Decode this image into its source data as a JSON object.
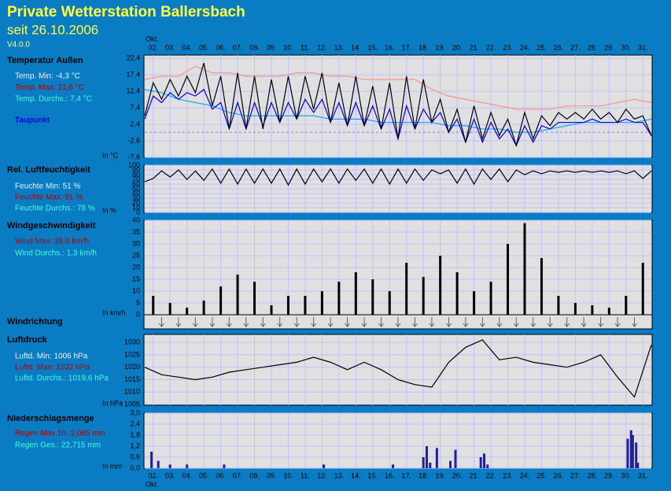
{
  "header": {
    "title": "Private Wetterstation Ballersbach",
    "subtitle": "seit 26.10.2006",
    "version": "V4.0.0"
  },
  "x_axis": {
    "month": "Okt.",
    "xlim": [
      2,
      32
    ],
    "xticks": [
      {
        "value": 2,
        "label": "02."
      },
      {
        "value": 3,
        "label": "03."
      },
      {
        "value": 4,
        "label": "04."
      },
      {
        "value": 5,
        "label": "05."
      },
      {
        "value": 6,
        "label": "06."
      },
      {
        "value": 7,
        "label": "07."
      },
      {
        "value": 8,
        "label": "08."
      },
      {
        "value": 9,
        "label": "09."
      },
      {
        "value": 10,
        "label": "10."
      },
      {
        "value": 11,
        "label": "11."
      },
      {
        "value": 12,
        "label": "12."
      },
      {
        "value": 13,
        "label": "13."
      },
      {
        "value": 14,
        "label": "14."
      },
      {
        "value": 15,
        "label": "15."
      },
      {
        "value": 16,
        "label": "16."
      },
      {
        "value": 17,
        "label": "17."
      },
      {
        "value": 18,
        "label": "18."
      },
      {
        "value": 19,
        "label": "19."
      },
      {
        "value": 20,
        "label": "20."
      },
      {
        "value": 21,
        "label": "21."
      },
      {
        "value": 22,
        "label": "22."
      },
      {
        "value": 23,
        "label": "23."
      },
      {
        "value": 24,
        "label": "24."
      },
      {
        "value": 25,
        "label": "25."
      },
      {
        "value": 26,
        "label": "26."
      },
      {
        "value": 27,
        "label": "27."
      },
      {
        "value": 28,
        "label": "28."
      },
      {
        "value": 29,
        "label": "29."
      },
      {
        "value": 30,
        "label": "30."
      },
      {
        "value": 31,
        "label": "31."
      }
    ]
  },
  "chart_data": [
    {
      "type": "line",
      "title": "Temperatur Außen",
      "unit": "In °C",
      "zero_line": true,
      "stats": [
        {
          "text": "Temp. Min: -4,3 °C",
          "color": "#e8f4ff"
        },
        {
          "text": "Temp. Max: 21,6 °C",
          "color": "#b00000"
        },
        {
          "text": "Temp. Durchs.: 7,4 °C",
          "color": "#40ffe0"
        }
      ],
      "ylim": [
        -7.6,
        23.4
      ],
      "yticks": [
        {
          "value": 22.4,
          "label": "22,4"
        },
        {
          "value": 17.4,
          "label": "17,4"
        },
        {
          "value": 12.4,
          "label": "12,4"
        },
        {
          "value": 7.4,
          "label": "7,4"
        },
        {
          "value": 2.4,
          "label": "2,4"
        },
        {
          "value": -2.6,
          "label": "-2,6"
        },
        {
          "value": -7.6,
          "label": "-7,6"
        }
      ],
      "x": [
        2,
        2.5,
        3,
        3.5,
        4,
        4.5,
        5,
        5.5,
        6,
        6.5,
        7,
        7.5,
        8,
        8.5,
        9,
        9.5,
        10,
        10.5,
        11,
        11.5,
        12,
        12.5,
        13,
        13.5,
        14,
        14.5,
        15,
        15.5,
        16,
        16.5,
        17,
        17.5,
        18,
        18.5,
        19,
        19.5,
        20,
        20.5,
        21,
        21.5,
        22,
        22.5,
        23,
        23.5,
        24,
        24.5,
        25,
        25.5,
        26,
        26.5,
        27,
        27.5,
        28,
        28.5,
        29,
        29.5,
        30,
        30.5,
        31,
        31.5,
        32
      ],
      "series": [
        {
          "color": "#ff9090",
          "x": [
            2,
            3,
            4,
            5,
            6,
            7,
            8,
            9,
            10,
            11,
            12,
            13,
            14,
            15,
            16,
            17,
            18,
            19,
            20,
            21,
            22,
            23,
            24,
            25,
            26,
            27,
            28,
            29,
            30,
            31,
            32
          ],
          "values": [
            16,
            17,
            17,
            20,
            18,
            18,
            17,
            17,
            17,
            18,
            18,
            17,
            17,
            16,
            16,
            16,
            16,
            13,
            11,
            10,
            9,
            8,
            7,
            7,
            7,
            8,
            8,
            8,
            9,
            10,
            9
          ]
        },
        {
          "color": "#10a8f0",
          "x": [
            2,
            3,
            4,
            5,
            6,
            7,
            8,
            9,
            10,
            11,
            12,
            13,
            14,
            15,
            16,
            17,
            18,
            19,
            20,
            21,
            22,
            23,
            24,
            25,
            26,
            27,
            28,
            29,
            30,
            31,
            32
          ],
          "values": [
            13,
            12,
            10,
            9,
            8,
            6,
            5,
            5,
            5,
            5,
            5,
            4,
            4,
            4,
            3,
            3,
            3,
            3,
            2,
            2,
            1,
            1,
            0,
            0,
            1,
            2,
            3,
            3,
            3,
            3,
            4
          ]
        },
        {
          "name": "Taupunkt",
          "color": "#0000e0",
          "values": [
            4,
            11,
            9,
            12,
            10,
            12,
            11,
            13,
            7,
            9,
            1,
            9,
            1,
            9,
            2,
            9,
            3,
            9,
            4,
            10,
            6,
            10,
            3,
            9,
            2,
            9,
            2,
            8,
            1,
            7,
            -2,
            8,
            1,
            7,
            3,
            6,
            0,
            4,
            -3,
            4,
            -3,
            3,
            -2,
            1,
            -4,
            2,
            -3,
            2,
            1,
            3,
            3,
            3,
            3,
            4,
            3,
            3,
            3,
            4,
            3,
            3,
            -1
          ]
        },
        {
          "color": "#000000",
          "values": [
            5,
            15,
            10,
            16,
            11,
            17,
            12,
            21,
            8,
            17,
            1,
            18,
            1,
            17,
            1,
            16,
            3,
            17,
            4,
            17,
            7,
            18,
            3,
            15,
            2,
            17,
            2,
            14,
            1,
            15,
            -2,
            17,
            1,
            16,
            3,
            10,
            0,
            7,
            -3,
            8,
            -2,
            6,
            -1,
            4,
            -4,
            6,
            -2,
            5,
            2,
            6,
            4,
            6,
            4,
            7,
            4,
            6,
            3,
            7,
            4,
            5,
            -1
          ]
        }
      ]
    },
    {
      "type": "line",
      "title": "Rel. Luftfeuchtigkeit",
      "unit": "In %",
      "stats": [
        {
          "text": "Feuchte Min: 51 %",
          "color": "#e8f4ff"
        },
        {
          "text": "Feuchte Max: 91 %",
          "color": "#b00000"
        },
        {
          "text": "Feuchte Durchs.: 78 %",
          "color": "#40ffe0"
        }
      ],
      "ylim": [
        0,
        100
      ],
      "yticks": [
        100,
        90,
        80,
        70,
        60,
        50,
        40,
        30,
        20,
        10,
        0
      ],
      "x": [
        2,
        2.5,
        3,
        3.5,
        4,
        4.5,
        5,
        5.5,
        6,
        6.5,
        7,
        7.5,
        8,
        8.5,
        9,
        9.5,
        10,
        10.5,
        11,
        11.5,
        12,
        12.5,
        13,
        13.5,
        14,
        14.5,
        15,
        15.5,
        16,
        16.5,
        17,
        17.5,
        18,
        18.5,
        19,
        19.5,
        20,
        20.5,
        21,
        21.5,
        22,
        22.5,
        23,
        23.5,
        24,
        24.5,
        25,
        25.5,
        26,
        26.5,
        27,
        27.5,
        28,
        28.5,
        29,
        29.5,
        30,
        30.5,
        31,
        31.5,
        32
      ],
      "series": [
        {
          "color": "#000000",
          "values": [
            65,
            72,
            88,
            75,
            90,
            70,
            88,
            68,
            92,
            62,
            92,
            60,
            92,
            62,
            92,
            62,
            92,
            58,
            92,
            60,
            92,
            65,
            92,
            62,
            92,
            68,
            92,
            62,
            92,
            60,
            92,
            62,
            92,
            68,
            90,
            82,
            90,
            62,
            92,
            60,
            92,
            70,
            92,
            65,
            90,
            80,
            88,
            82,
            88,
            85,
            88,
            85,
            88,
            85,
            88,
            85,
            88,
            82,
            88,
            72,
            88
          ]
        }
      ]
    },
    {
      "type": "bar",
      "title": "Windgeschwindigkeit",
      "unit": "In km/h",
      "stats": [
        {
          "text": "Wind Max: 38,8 km/h",
          "color": "#b00000"
        },
        {
          "text": "Wind Durchs.: 1,3 km/h",
          "color": "#40ffe0"
        }
      ],
      "ylim": [
        0,
        40
      ],
      "yticks": [
        40,
        35,
        30,
        25,
        20,
        15,
        10,
        5,
        0
      ],
      "x": [
        2,
        2.5,
        3,
        3.5,
        4,
        4.5,
        5,
        5.5,
        6,
        6.5,
        7,
        7.5,
        8,
        8.5,
        9,
        9.5,
        10,
        10.5,
        11,
        11.5,
        12,
        12.5,
        13,
        13.5,
        14,
        14.5,
        15,
        15.5,
        16,
        16.5,
        17,
        17.5,
        18,
        18.5,
        19,
        19.5,
        20,
        20.5,
        21,
        21.5,
        22,
        22.5,
        23,
        23.5,
        24,
        24.5,
        25,
        25.5,
        26,
        26.5,
        27,
        27.5,
        28,
        28.5,
        29,
        29.5,
        30,
        30.5,
        31,
        31.5,
        32
      ],
      "series": [
        {
          "color": "#000000",
          "values": [
            0,
            8,
            0,
            5,
            0,
            3,
            0,
            6,
            0,
            12,
            0,
            17,
            0,
            14,
            0,
            4,
            0,
            8,
            0,
            8,
            0,
            10,
            0,
            14,
            0,
            18,
            0,
            15,
            0,
            10,
            0,
            22,
            0,
            16,
            0,
            25,
            0,
            18,
            0,
            10,
            0,
            14,
            0,
            30,
            0,
            38.8,
            0,
            24,
            0,
            8,
            0,
            5,
            0,
            4,
            0,
            3,
            0,
            8,
            0,
            22,
            0
          ]
        }
      ]
    },
    {
      "type": "arrows",
      "title": "Windrichtung",
      "x": [
        3,
        4,
        5,
        6,
        7,
        8,
        9,
        10,
        11,
        12,
        13,
        14,
        15,
        16,
        17,
        18,
        19,
        20,
        21,
        22,
        23,
        24,
        25,
        26,
        27,
        28,
        29,
        30,
        31
      ],
      "series": [
        {
          "color": "#606060",
          "values": [
            0,
            0,
            0,
            0,
            0,
            0,
            0,
            0,
            0,
            0,
            0,
            0,
            0,
            0,
            0,
            0,
            0,
            0,
            0,
            0,
            0,
            0,
            0,
            0,
            0,
            0,
            0,
            0,
            0
          ]
        }
      ]
    },
    {
      "type": "line",
      "title": "Luftdruck",
      "unit": "In hPa",
      "stats": [
        {
          "text": "Luftd. Min: 1006 hPa",
          "color": "#e8f4ff"
        },
        {
          "text": "Luftd. Max: 1032 hPa",
          "color": "#b00000"
        },
        {
          "text": "Luftd. Durchs.: 1019,6 hPa",
          "color": "#40ffe0"
        }
      ],
      "ylim": [
        1004.7,
        1033.2
      ],
      "yticks": [
        1030,
        1025,
        1020,
        1015,
        1010,
        1005
      ],
      "x": [
        2,
        3,
        4,
        5,
        6,
        7,
        8,
        9,
        10,
        11,
        12,
        13,
        14,
        15,
        16,
        17,
        18,
        19,
        20,
        21,
        22,
        23,
        24,
        25,
        26,
        27,
        28,
        29,
        30,
        31,
        32
      ],
      "series": [
        {
          "color": "#000000",
          "values": [
            1020,
            1017,
            1016,
            1015,
            1016,
            1018,
            1019,
            1020,
            1021,
            1022,
            1024,
            1022,
            1019,
            1022,
            1019,
            1015,
            1013,
            1012,
            1022,
            1028,
            1031,
            1023,
            1024,
            1022,
            1021,
            1020,
            1022,
            1025,
            1016,
            1008,
            1029
          ]
        }
      ]
    },
    {
      "type": "bar",
      "title": "Niederschlagsmenge",
      "unit": "In mm",
      "stats": [
        {
          "text": "Regen Max 1h: 2,065 mm",
          "color": "#b00000"
        },
        {
          "text": "Regen Ges.: 22,715 mm",
          "color": "#40ffe0"
        }
      ],
      "ylim": [
        0,
        3
      ],
      "yticks": [
        {
          "value": 3,
          "label": "3,0"
        },
        {
          "value": 2.4,
          "label": "2,4"
        },
        {
          "value": 1.8,
          "label": "1,8"
        },
        {
          "value": 1.2,
          "label": "1,2"
        },
        {
          "value": 0.6,
          "label": "0,6"
        },
        {
          "value": 0,
          "label": "0,0"
        }
      ],
      "series": [
        {
          "color": "#2020a0",
          "x": [
            2.4,
            2.8,
            3.5,
            4.5,
            6.7,
            12.6,
            16.7,
            18.5,
            18.7,
            18.9,
            19.3,
            20.1,
            20.4,
            21.9,
            22.1,
            22.3,
            30.6,
            30.8,
            30.9,
            31.1,
            31.2
          ],
          "values": [
            0.9,
            0.4,
            0.2,
            0.2,
            0.2,
            0.2,
            0.2,
            0.6,
            1.2,
            0.3,
            1.1,
            0.4,
            1.0,
            0.6,
            0.8,
            0.2,
            1.6,
            2.065,
            1.8,
            1.4,
            0.3
          ]
        }
      ]
    }
  ]
}
